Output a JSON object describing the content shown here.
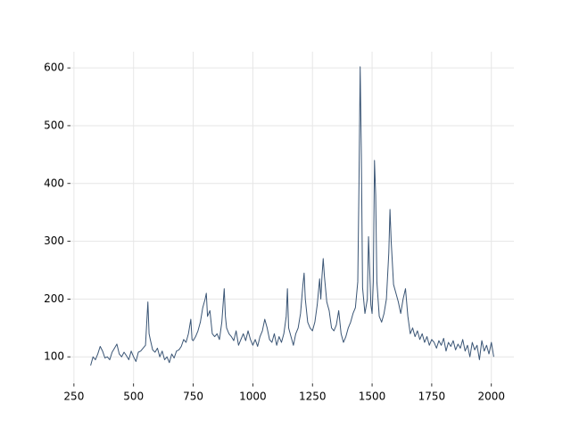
{
  "chart_data": {
    "type": "line",
    "x": [
      320,
      330,
      340,
      350,
      360,
      370,
      380,
      390,
      400,
      410,
      420,
      430,
      440,
      450,
      460,
      470,
      480,
      490,
      500,
      510,
      520,
      530,
      540,
      550,
      560,
      565,
      570,
      580,
      590,
      600,
      610,
      620,
      630,
      640,
      650,
      660,
      670,
      680,
      690,
      700,
      710,
      720,
      730,
      740,
      745,
      750,
      760,
      770,
      780,
      790,
      800,
      805,
      810,
      820,
      830,
      840,
      850,
      860,
      870,
      880,
      885,
      890,
      900,
      910,
      920,
      930,
      940,
      950,
      960,
      970,
      980,
      990,
      1000,
      1010,
      1020,
      1030,
      1040,
      1050,
      1060,
      1070,
      1080,
      1090,
      1100,
      1110,
      1120,
      1130,
      1140,
      1145,
      1150,
      1160,
      1170,
      1180,
      1190,
      1200,
      1210,
      1215,
      1220,
      1230,
      1240,
      1250,
      1260,
      1270,
      1280,
      1285,
      1290,
      1295,
      1300,
      1310,
      1320,
      1330,
      1340,
      1350,
      1360,
      1370,
      1380,
      1390,
      1400,
      1410,
      1420,
      1430,
      1440,
      1445,
      1450,
      1455,
      1460,
      1470,
      1480,
      1485,
      1490,
      1495,
      1500,
      1505,
      1510,
      1515,
      1520,
      1530,
      1540,
      1550,
      1560,
      1570,
      1575,
      1580,
      1590,
      1600,
      1610,
      1620,
      1630,
      1640,
      1650,
      1660,
      1670,
      1680,
      1690,
      1700,
      1710,
      1720,
      1730,
      1740,
      1750,
      1760,
      1770,
      1780,
      1790,
      1800,
      1810,
      1820,
      1830,
      1840,
      1850,
      1860,
      1870,
      1880,
      1890,
      1900,
      1910,
      1920,
      1930,
      1940,
      1950,
      1960,
      1970,
      1980,
      1990,
      2000,
      2010
    ],
    "series": [
      {
        "color": "#3a5575",
        "values": [
          85,
          100,
          95,
          105,
          118,
          110,
          98,
          100,
          95,
          108,
          115,
          122,
          105,
          100,
          108,
          102,
          95,
          110,
          100,
          92,
          108,
          110,
          115,
          120,
          195,
          140,
          130,
          112,
          108,
          115,
          100,
          110,
          95,
          100,
          90,
          105,
          98,
          110,
          112,
          118,
          130,
          125,
          140,
          165,
          130,
          128,
          135,
          145,
          160,
          185,
          200,
          210,
          170,
          180,
          140,
          135,
          140,
          130,
          160,
          218,
          170,
          150,
          140,
          135,
          128,
          145,
          120,
          130,
          140,
          128,
          145,
          130,
          120,
          130,
          118,
          135,
          145,
          165,
          150,
          130,
          125,
          140,
          120,
          135,
          125,
          140,
          170,
          218,
          150,
          135,
          120,
          140,
          150,
          175,
          225,
          245,
          200,
          160,
          150,
          145,
          160,
          190,
          235,
          200,
          240,
          270,
          240,
          195,
          180,
          150,
          145,
          155,
          180,
          140,
          125,
          135,
          150,
          160,
          175,
          185,
          230,
          400,
          602,
          450,
          220,
          175,
          200,
          308,
          250,
          190,
          175,
          230,
          440,
          380,
          230,
          170,
          160,
          175,
          200,
          280,
          355,
          300,
          225,
          210,
          195,
          175,
          200,
          218,
          170,
          140,
          150,
          135,
          145,
          130,
          140,
          125,
          135,
          120,
          130,
          125,
          115,
          128,
          120,
          132,
          110,
          125,
          118,
          128,
          112,
          122,
          115,
          130,
          110,
          120,
          100,
          125,
          112,
          120,
          95,
          128,
          110,
          120,
          105,
          125,
          100
        ]
      }
    ],
    "xlim": [
      235.5,
      2094.5
    ],
    "ylim": [
      54,
      628
    ],
    "xticks": [
      250,
      500,
      750,
      1000,
      1250,
      1500,
      1750,
      2000
    ],
    "yticks": [
      100,
      200,
      300,
      400,
      500,
      600
    ],
    "grid": true
  }
}
